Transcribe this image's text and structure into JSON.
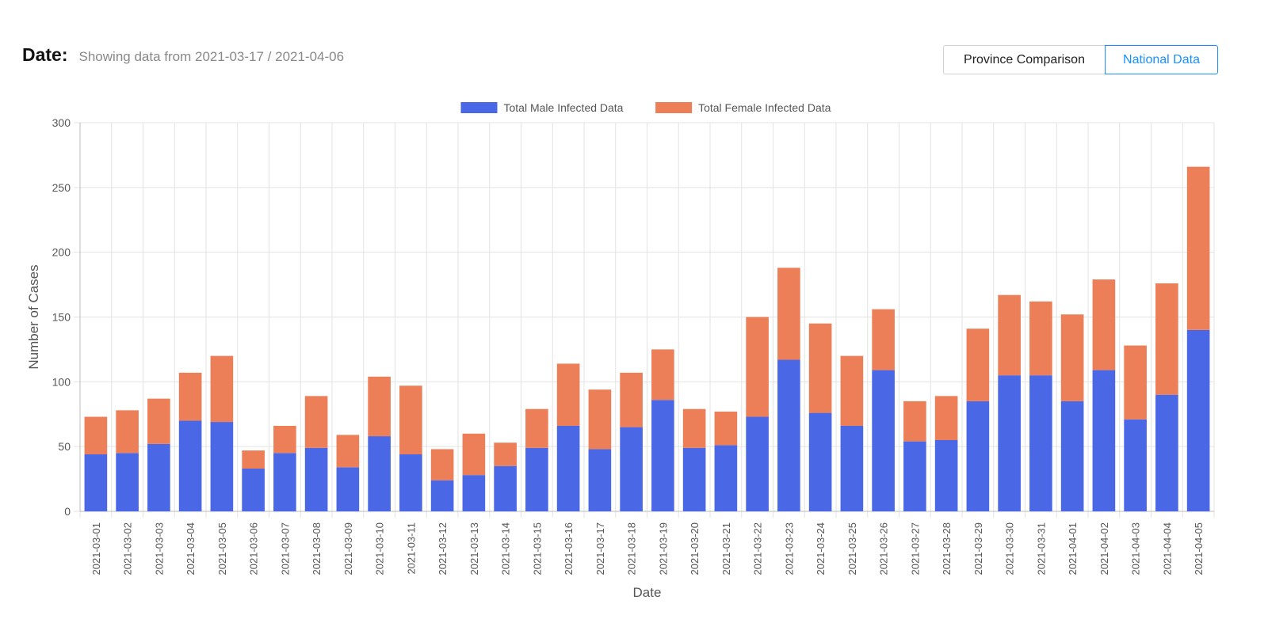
{
  "header": {
    "date_label": "Date:",
    "date_range": "Showing data from 2021-03-17 / 2021-04-06"
  },
  "toggle": {
    "province_label": "Province Comparison",
    "national_label": "National Data",
    "active": "National Data"
  },
  "colors": {
    "male": "#4a67e6",
    "female": "#ec7e58",
    "active_button": "#1890ff"
  },
  "chart_data": {
    "type": "bar",
    "stacked": true,
    "xlabel": "Date",
    "ylabel": "Number of Cases",
    "ylim": [
      0,
      300
    ],
    "yticks": [
      0,
      50,
      100,
      150,
      200,
      250,
      300
    ],
    "grid": true,
    "legend_position": "top-center",
    "categories": [
      "2021-03-01",
      "2021-03-02",
      "2021-03-03",
      "2021-03-04",
      "2021-03-05",
      "2021-03-06",
      "2021-03-07",
      "2021-03-08",
      "2021-03-09",
      "2021-03-10",
      "2021-03-11",
      "2021-03-12",
      "2021-03-13",
      "2021-03-14",
      "2021-03-15",
      "2021-03-16",
      "2021-03-17",
      "2021-03-18",
      "2021-03-19",
      "2021-03-20",
      "2021-03-21",
      "2021-03-22",
      "2021-03-23",
      "2021-03-24",
      "2021-03-25",
      "2021-03-26",
      "2021-03-27",
      "2021-03-28",
      "2021-03-29",
      "2021-03-30",
      "2021-03-31",
      "2021-04-01",
      "2021-04-02",
      "2021-04-03",
      "2021-04-04",
      "2021-04-05"
    ],
    "series": [
      {
        "name": "Total Male Infected Data",
        "values": [
          44,
          45,
          52,
          70,
          69,
          33,
          45,
          49,
          34,
          58,
          44,
          24,
          28,
          35,
          49,
          66,
          48,
          65,
          86,
          49,
          51,
          73,
          117,
          76,
          66,
          109,
          54,
          55,
          85,
          105,
          105,
          85,
          109,
          71,
          90,
          140
        ]
      },
      {
        "name": "Total Female Infected Data",
        "values": [
          29,
          33,
          35,
          37,
          51,
          14,
          21,
          40,
          25,
          46,
          53,
          24,
          32,
          18,
          30,
          48,
          46,
          42,
          39,
          30,
          26,
          77,
          71,
          69,
          54,
          47,
          31,
          34,
          56,
          62,
          57,
          67,
          70,
          57,
          86,
          126
        ]
      }
    ]
  }
}
